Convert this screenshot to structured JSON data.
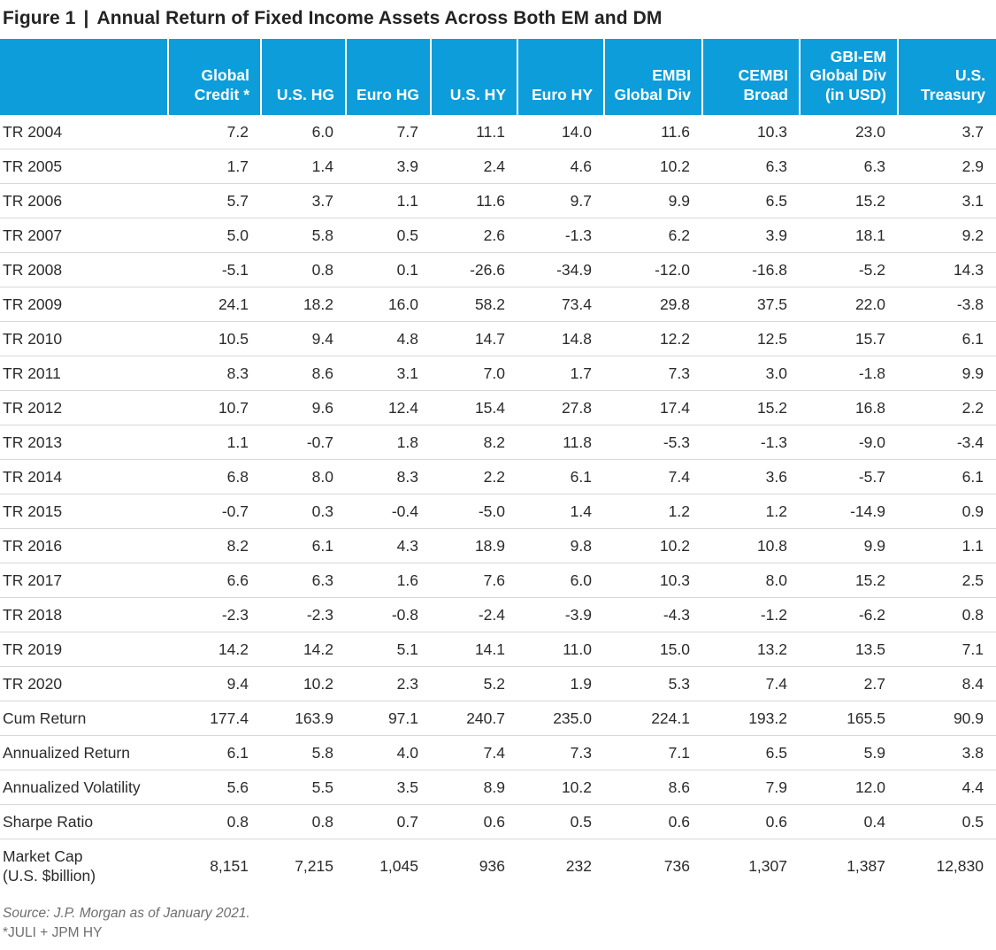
{
  "title": {
    "prefix": "Figure 1",
    "separator": "|",
    "text": "Annual Return of Fixed Income Assets Across Both EM and DM"
  },
  "colors": {
    "header_bg": "#0d9dda",
    "header_text": "#ffffff",
    "body_text": "#2b2b2b",
    "row_divider": "#d8d8d8",
    "footer_text": "#6d6e71"
  },
  "chart_data": {
    "type": "table",
    "title": "Figure 1 | Annual Return of Fixed Income Assets Across Both EM and DM",
    "columns": [
      "Global Credit *",
      "U.S. HG",
      "Euro HG",
      "U.S. HY",
      "Euro HY",
      "EMBI Global Div",
      "CEMBI Broad",
      "GBI-EM Global Div (in USD)",
      "U.S. Treasury"
    ],
    "rows": [
      {
        "label": "TR 2004",
        "values": [
          "7.2",
          "6.0",
          "7.7",
          "11.1",
          "14.0",
          "11.6",
          "10.3",
          "23.0",
          "3.7"
        ]
      },
      {
        "label": "TR 2005",
        "values": [
          "1.7",
          "1.4",
          "3.9",
          "2.4",
          "4.6",
          "10.2",
          "6.3",
          "6.3",
          "2.9"
        ]
      },
      {
        "label": "TR 2006",
        "values": [
          "5.7",
          "3.7",
          "1.1",
          "11.6",
          "9.7",
          "9.9",
          "6.5",
          "15.2",
          "3.1"
        ]
      },
      {
        "label": "TR 2007",
        "values": [
          "5.0",
          "5.8",
          "0.5",
          "2.6",
          "-1.3",
          "6.2",
          "3.9",
          "18.1",
          "9.2"
        ]
      },
      {
        "label": "TR 2008",
        "values": [
          "-5.1",
          "0.8",
          "0.1",
          "-26.6",
          "-34.9",
          "-12.0",
          "-16.8",
          "-5.2",
          "14.3"
        ]
      },
      {
        "label": "TR 2009",
        "values": [
          "24.1",
          "18.2",
          "16.0",
          "58.2",
          "73.4",
          "29.8",
          "37.5",
          "22.0",
          "-3.8"
        ]
      },
      {
        "label": "TR 2010",
        "values": [
          "10.5",
          "9.4",
          "4.8",
          "14.7",
          "14.8",
          "12.2",
          "12.5",
          "15.7",
          "6.1"
        ]
      },
      {
        "label": "TR 2011",
        "values": [
          "8.3",
          "8.6",
          "3.1",
          "7.0",
          "1.7",
          "7.3",
          "3.0",
          "-1.8",
          "9.9"
        ]
      },
      {
        "label": "TR 2012",
        "values": [
          "10.7",
          "9.6",
          "12.4",
          "15.4",
          "27.8",
          "17.4",
          "15.2",
          "16.8",
          "2.2"
        ]
      },
      {
        "label": "TR 2013",
        "values": [
          "1.1",
          "-0.7",
          "1.8",
          "8.2",
          "11.8",
          "-5.3",
          "-1.3",
          "-9.0",
          "-3.4"
        ]
      },
      {
        "label": "TR 2014",
        "values": [
          "6.8",
          "8.0",
          "8.3",
          "2.2",
          "6.1",
          "7.4",
          "3.6",
          "-5.7",
          "6.1"
        ]
      },
      {
        "label": "TR 2015",
        "values": [
          "-0.7",
          "0.3",
          "-0.4",
          "-5.0",
          "1.4",
          "1.2",
          "1.2",
          "-14.9",
          "0.9"
        ]
      },
      {
        "label": "TR 2016",
        "values": [
          "8.2",
          "6.1",
          "4.3",
          "18.9",
          "9.8",
          "10.2",
          "10.8",
          "9.9",
          "1.1"
        ]
      },
      {
        "label": "TR 2017",
        "values": [
          "6.6",
          "6.3",
          "1.6",
          "7.6",
          "6.0",
          "10.3",
          "8.0",
          "15.2",
          "2.5"
        ]
      },
      {
        "label": "TR 2018",
        "values": [
          "-2.3",
          "-2.3",
          "-0.8",
          "-2.4",
          "-3.9",
          "-4.3",
          "-1.2",
          "-6.2",
          "0.8"
        ]
      },
      {
        "label": "TR 2019",
        "values": [
          "14.2",
          "14.2",
          "5.1",
          "14.1",
          "11.0",
          "15.0",
          "13.2",
          "13.5",
          "7.1"
        ]
      },
      {
        "label": "TR 2020",
        "values": [
          "9.4",
          "10.2",
          "2.3",
          "5.2",
          "1.9",
          "5.3",
          "7.4",
          "2.7",
          "8.4"
        ]
      },
      {
        "label": "Cum Return",
        "values": [
          "177.4",
          "163.9",
          "97.1",
          "240.7",
          "235.0",
          "224.1",
          "193.2",
          "165.5",
          "90.9"
        ]
      },
      {
        "label": "Annualized Return",
        "values": [
          "6.1",
          "5.8",
          "4.0",
          "7.4",
          "7.3",
          "7.1",
          "6.5",
          "5.9",
          "3.8"
        ]
      },
      {
        "label": "Annualized Volatility",
        "values": [
          "5.6",
          "5.5",
          "3.5",
          "8.9",
          "10.2",
          "8.6",
          "7.9",
          "12.0",
          "4.4"
        ]
      },
      {
        "label": "Sharpe Ratio",
        "values": [
          "0.8",
          "0.8",
          "0.7",
          "0.6",
          "0.5",
          "0.6",
          "0.6",
          "0.4",
          "0.5"
        ]
      },
      {
        "label": "Market Cap\n(U.S. $billion)",
        "values": [
          "8,151",
          "7,215",
          "1,045",
          "936",
          "232",
          "736",
          "1,307",
          "1,387",
          "12,830"
        ]
      }
    ]
  },
  "footer": {
    "source": "Source: J.P. Morgan as of January 2021.",
    "footnote": "*JULI + JPM HY"
  }
}
